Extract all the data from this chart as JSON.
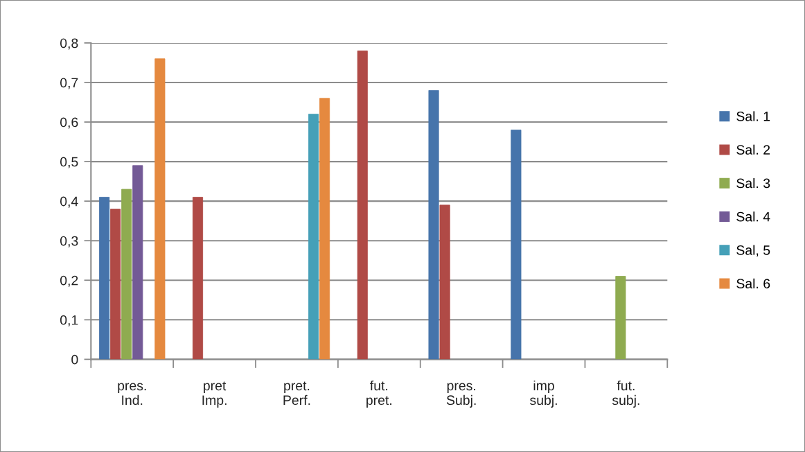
{
  "chart_data": {
    "type": "bar",
    "categories": [
      "pres.\nInd.",
      "pret\nImp.",
      "pret.\nPerf.",
      "fut.\npret.",
      "pres.\nSubj.",
      "imp\nsubj.",
      "fut.\nsubj."
    ],
    "series": [
      {
        "name": "Sal. 1",
        "color": "#4674ab",
        "values": [
          0.41,
          null,
          null,
          null,
          0.68,
          0.58,
          null
        ]
      },
      {
        "name": "Sal. 2",
        "color": "#b04a46",
        "values": [
          0.38,
          0.41,
          null,
          0.78,
          0.39,
          null,
          null
        ]
      },
      {
        "name": "Sal. 3",
        "color": "#8fab50",
        "values": [
          0.43,
          null,
          null,
          null,
          null,
          null,
          0.21
        ]
      },
      {
        "name": "Sal. 4",
        "color": "#735a96",
        "values": [
          0.49,
          null,
          null,
          null,
          null,
          null,
          null
        ]
      },
      {
        "name": "Sal, 5",
        "color": "#45a0b8",
        "values": [
          null,
          null,
          0.62,
          null,
          null,
          null,
          null
        ]
      },
      {
        "name": "Sal. 6",
        "color": "#e5893f",
        "values": [
          0.76,
          null,
          0.66,
          null,
          null,
          null,
          null
        ]
      }
    ],
    "ylim": [
      0,
      0.8
    ],
    "yticks": [
      0,
      {
        "value": 0.1,
        "label": "0,1"
      },
      {
        "value": 0.2,
        "label": "0,2"
      },
      {
        "value": 0.3,
        "label": "0,3"
      },
      {
        "value": 0.4,
        "label": "0,4"
      },
      {
        "value": 0.5,
        "label": "0,5"
      },
      {
        "value": 0.6,
        "label": "0,6"
      },
      {
        "value": 0.7,
        "label": "0,7"
      },
      {
        "value": 0.8,
        "label": "0,8"
      }
    ],
    "grid": "y",
    "legend": "right"
  }
}
